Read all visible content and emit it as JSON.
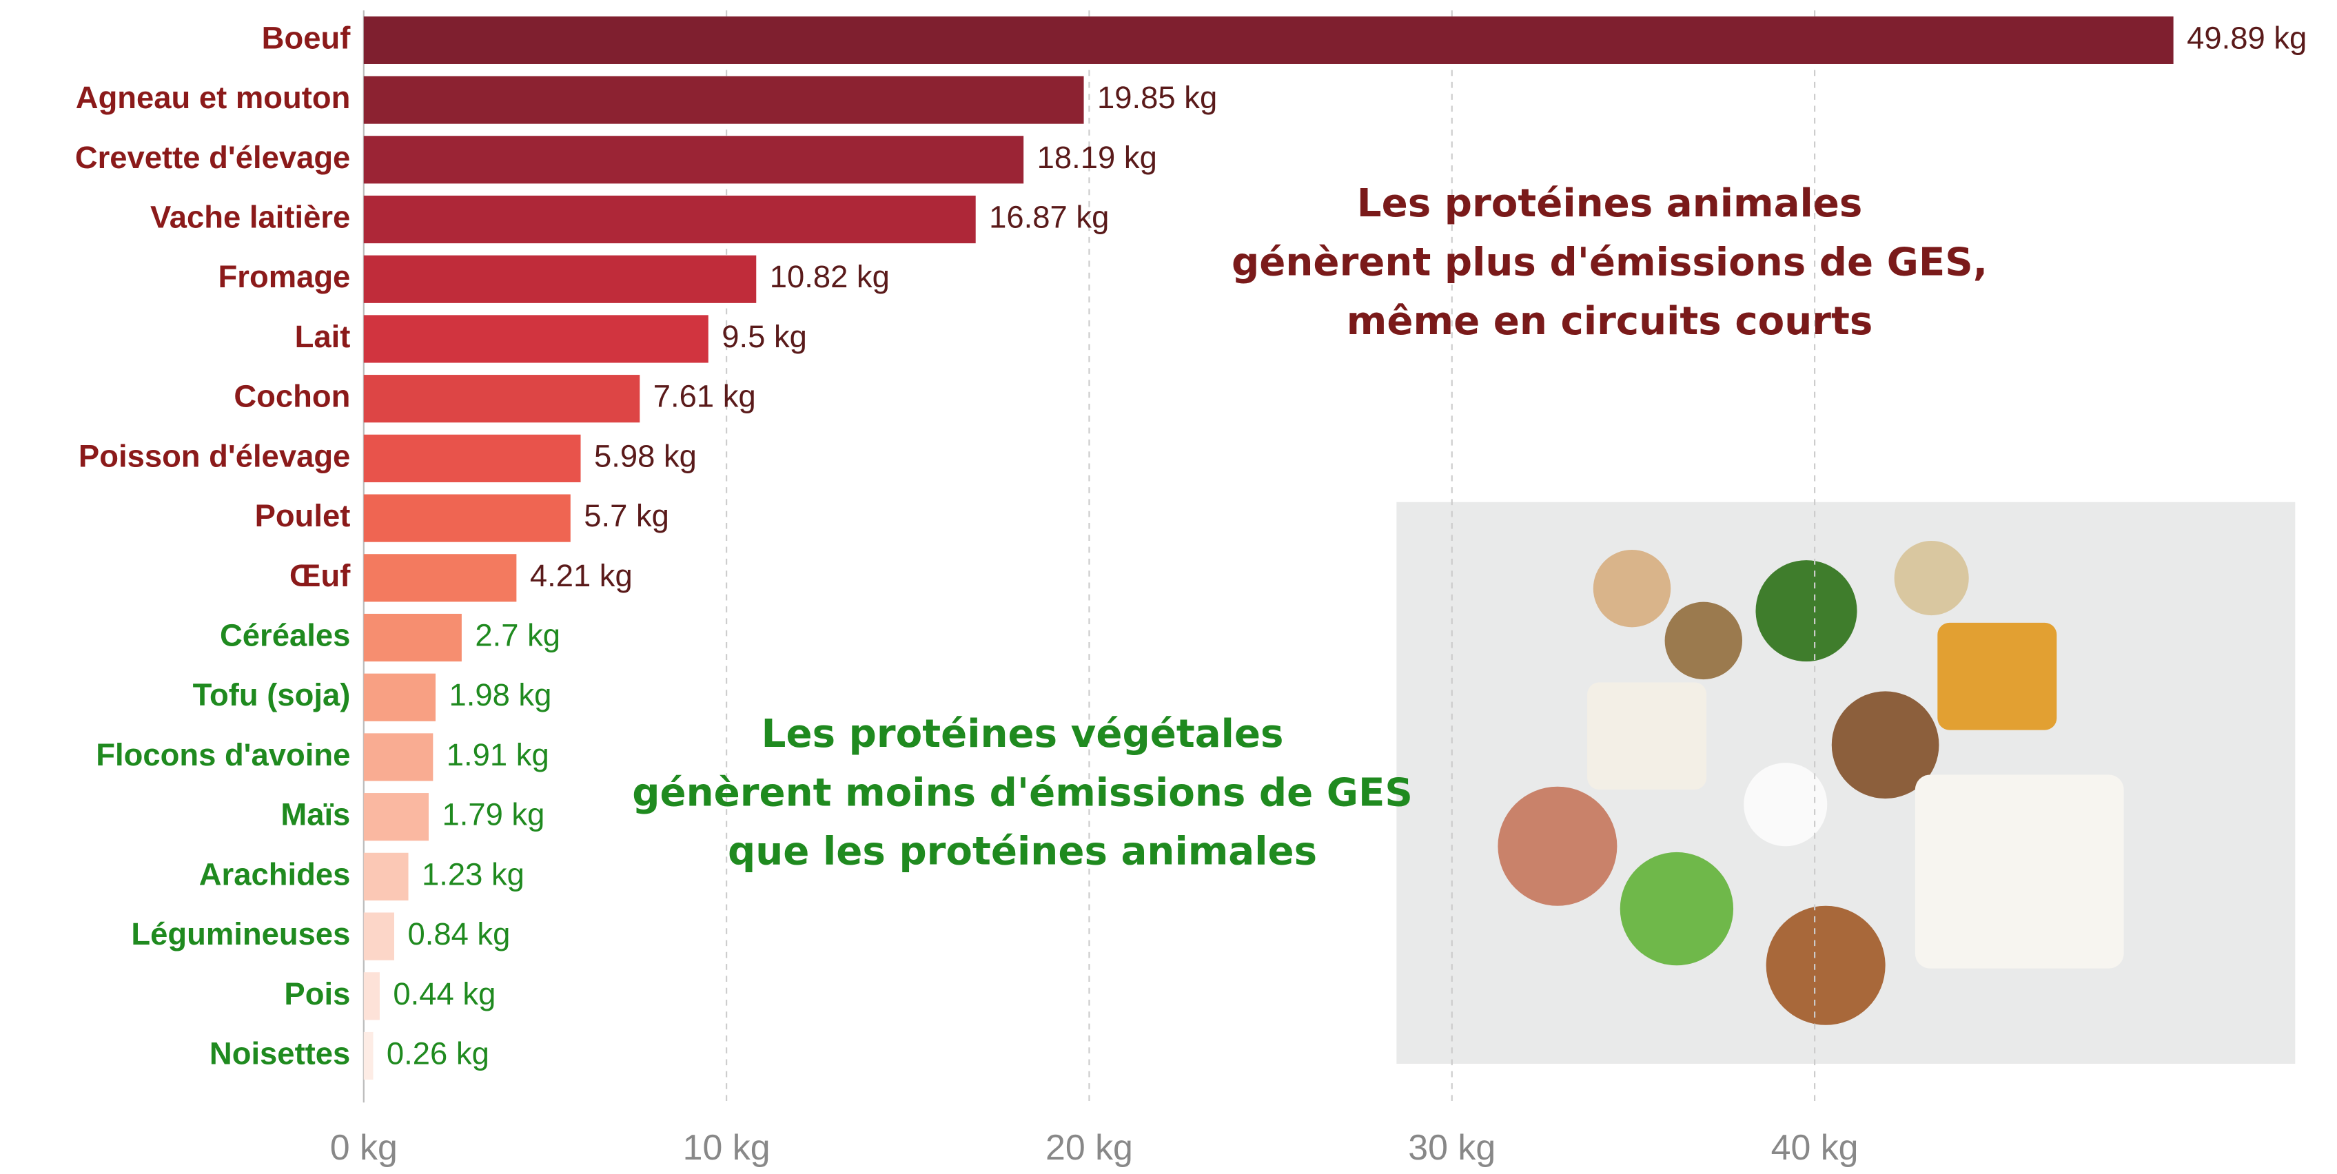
{
  "chart_data": {
    "type": "barh",
    "categories": [
      "Boeuf",
      "Agneau et mouton",
      "Crevette d'élevage",
      "Vache laitière",
      "Fromage",
      "Lait",
      "Cochon",
      "Poisson d'élevage",
      "Poulet",
      "Œuf",
      "Céréales",
      "Tofu (soja)",
      "Flocons d'avoine",
      "Maïs",
      "Arachides",
      "Légumineuses",
      "Pois",
      "Noisettes"
    ],
    "values": [
      49.89,
      19.85,
      18.19,
      16.87,
      10.82,
      9.5,
      7.61,
      5.98,
      5.7,
      4.21,
      2.7,
      1.98,
      1.91,
      1.79,
      1.23,
      0.84,
      0.44,
      0.26
    ],
    "value_labels": [
      "49.89 kg",
      "19.85 kg",
      "18.19 kg",
      "16.87 kg",
      "10.82 kg",
      "9.5 kg",
      "7.61 kg",
      "5.98 kg",
      "5.7 kg",
      "4.21 kg",
      "2.7 kg",
      "1.98 kg",
      "1.91 kg",
      "1.79 kg",
      "1.23 kg",
      "0.84 kg",
      "0.44 kg",
      "0.26 kg"
    ],
    "colors": [
      "#7f1f2f",
      "#8c2231",
      "#9b2435",
      "#ae2738",
      "#c02c3a",
      "#d1343f",
      "#dd4545",
      "#e8534b",
      "#ef6552",
      "#f37a5f",
      "#f68e70",
      "#f8a083",
      "#f9ac92",
      "#fab8a1",
      "#fbc8b5",
      "#fcd6c8",
      "#fde2d8",
      "#fdece5"
    ],
    "label_colors": [
      "#8b1a1a",
      "#8b1a1a",
      "#8b1a1a",
      "#8b1a1a",
      "#8b1a1a",
      "#8b1a1a",
      "#8b1a1a",
      "#8b1a1a",
      "#8b1a1a",
      "#8b1a1a",
      "#1f8a1f",
      "#1f8a1f",
      "#1f8a1f",
      "#1f8a1f",
      "#1f8a1f",
      "#1f8a1f",
      "#1f8a1f",
      "#1f8a1f"
    ],
    "xlim": [
      0,
      53
    ],
    "xticks": [
      {
        "value": 0,
        "label": "0 kg"
      },
      {
        "value": 10,
        "label": "10 kg"
      },
      {
        "value": 20,
        "label": "20 kg"
      },
      {
        "value": 30,
        "label": "30 kg"
      },
      {
        "value": 40,
        "label": "40 kg"
      }
    ],
    "grid": true,
    "annotations": [
      {
        "lines": [
          "Les protéines animales",
          "génèrent plus d'émissions de GES,",
          "même en circuits courts"
        ],
        "color": "#7a1a1a"
      },
      {
        "lines": [
          "Les protéines végétales",
          "génèrent moins d'émissions de GES",
          "que les protéines animales"
        ],
        "color": "#1f8a1f"
      }
    ]
  }
}
